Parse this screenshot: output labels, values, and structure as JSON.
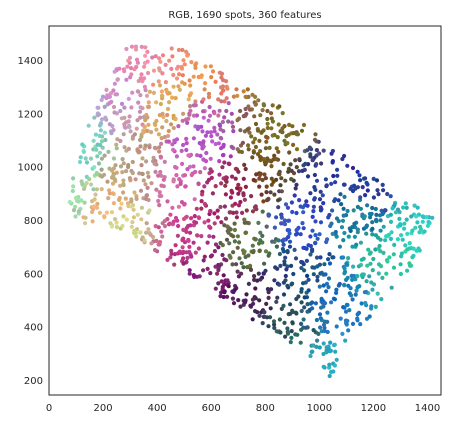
{
  "chart_data": {
    "type": "scatter",
    "title": "RGB, 1690 spots, 360 features",
    "xlabel": "",
    "ylabel": "",
    "xlim": [
      0,
      1450
    ],
    "ylim": [
      145,
      1530
    ],
    "x_ticks": [
      0,
      200,
      400,
      600,
      800,
      1000,
      1200,
      1400
    ],
    "y_ticks": [
      200,
      400,
      600,
      800,
      1000,
      1200,
      1400
    ],
    "x_tick_labels": [
      "0",
      "200",
      "400",
      "600",
      "800",
      "1000",
      "1200",
      "1400"
    ],
    "y_tick_labels": [
      "200",
      "400",
      "600",
      "800",
      "1000",
      "1200",
      "1400"
    ],
    "grid": false,
    "legend": "none",
    "spot_count": 1690,
    "tissue_polygon": [
      [
        60,
        860
      ],
      [
        130,
        1120
      ],
      [
        290,
        1460
      ],
      [
        480,
        1450
      ],
      [
        900,
        1200
      ],
      [
        1150,
        1000
      ],
      [
        1320,
        880
      ],
      [
        1420,
        810
      ],
      [
        1360,
        650
      ],
      [
        1200,
        450
      ],
      [
        1100,
        330
      ],
      [
        1040,
        210
      ],
      [
        980,
        280
      ],
      [
        880,
        350
      ],
      [
        760,
        420
      ],
      [
        620,
        520
      ],
      [
        450,
        640
      ],
      [
        280,
        760
      ],
      [
        110,
        790
      ]
    ],
    "color_anchors": [
      {
        "x": 80,
        "y": 1100,
        "color": "#6fd8c8"
      },
      {
        "x": 80,
        "y": 880,
        "color": "#8fe0b0"
      },
      {
        "x": 180,
        "y": 820,
        "color": "#f2b07a"
      },
      {
        "x": 250,
        "y": 740,
        "color": "#c9d98f"
      },
      {
        "x": 320,
        "y": 1000,
        "color": "#b7a37c"
      },
      {
        "x": 300,
        "y": 1250,
        "color": "#c48fd0"
      },
      {
        "x": 420,
        "y": 1230,
        "color": "#e0b050"
      },
      {
        "x": 380,
        "y": 1380,
        "color": "#f08aa0"
      },
      {
        "x": 580,
        "y": 1380,
        "color": "#f08a50"
      },
      {
        "x": 480,
        "y": 980,
        "color": "#d56ab0"
      },
      {
        "x": 560,
        "y": 1120,
        "color": "#b050d0"
      },
      {
        "x": 660,
        "y": 900,
        "color": "#a02060"
      },
      {
        "x": 520,
        "y": 720,
        "color": "#c84090"
      },
      {
        "x": 580,
        "y": 620,
        "color": "#7a1a70"
      },
      {
        "x": 760,
        "y": 520,
        "color": "#4a1a5a"
      },
      {
        "x": 730,
        "y": 720,
        "color": "#5a7a3a"
      },
      {
        "x": 820,
        "y": 960,
        "color": "#6b4a1a"
      },
      {
        "x": 820,
        "y": 1140,
        "color": "#7a6a2a"
      },
      {
        "x": 930,
        "y": 800,
        "color": "#3050d0"
      },
      {
        "x": 1000,
        "y": 920,
        "color": "#2a3a9a"
      },
      {
        "x": 900,
        "y": 600,
        "color": "#1a4a7a"
      },
      {
        "x": 880,
        "y": 420,
        "color": "#2a5a5a"
      },
      {
        "x": 1060,
        "y": 500,
        "color": "#1a70c0"
      },
      {
        "x": 1050,
        "y": 260,
        "color": "#30b0c0"
      },
      {
        "x": 1150,
        "y": 820,
        "color": "#1a8a9a"
      },
      {
        "x": 1250,
        "y": 620,
        "color": "#30c0a0"
      },
      {
        "x": 1350,
        "y": 800,
        "color": "#30d0c0"
      },
      {
        "x": 1200,
        "y": 920,
        "color": "#2a2a9a"
      }
    ],
    "colors": {
      "axis": "#262626",
      "background": "#ffffff"
    }
  }
}
